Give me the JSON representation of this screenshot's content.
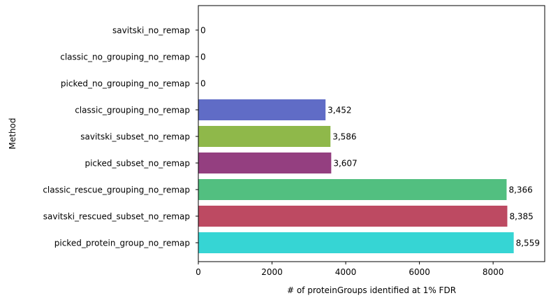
{
  "chart_data": {
    "type": "bar",
    "orientation": "horizontal",
    "title": "",
    "xlabel": "# of proteinGroups identified at 1% FDR",
    "ylabel": "Method",
    "xlim": [
      0,
      9400
    ],
    "xticks": [
      0,
      2000,
      4000,
      6000,
      8000
    ],
    "xtick_labels": [
      "0",
      "2000",
      "4000",
      "6000",
      "8000"
    ],
    "grid": false,
    "legend": "none",
    "bars": [
      {
        "category": "savitski_no_remap",
        "value": 0,
        "label": "0",
        "color": "#d9d9d9"
      },
      {
        "category": "classic_no_grouping_no_remap",
        "value": 0,
        "label": "0",
        "color": "#d9d9d9"
      },
      {
        "category": "picked_no_grouping_no_remap",
        "value": 0,
        "label": "0",
        "color": "#d9d9d9"
      },
      {
        "category": "classic_grouping_no_remap",
        "value": 3452,
        "label": "3,452",
        "color": "#606cc6"
      },
      {
        "category": "savitski_subset_no_remap",
        "value": 3586,
        "label": "3,586",
        "color": "#8fb84a"
      },
      {
        "category": "picked_subset_no_remap",
        "value": 3607,
        "label": "3,607",
        "color": "#943f80"
      },
      {
        "category": "classic_rescue_grouping_no_remap",
        "value": 8366,
        "label": "8,366",
        "color": "#52bf80"
      },
      {
        "category": "savitski_rescued_subset_no_remap",
        "value": 8385,
        "label": "8,385",
        "color": "#bd4a62"
      },
      {
        "category": "picked_protein_group_no_remap",
        "value": 8559,
        "label": "8,559",
        "color": "#36d5d4"
      }
    ]
  }
}
